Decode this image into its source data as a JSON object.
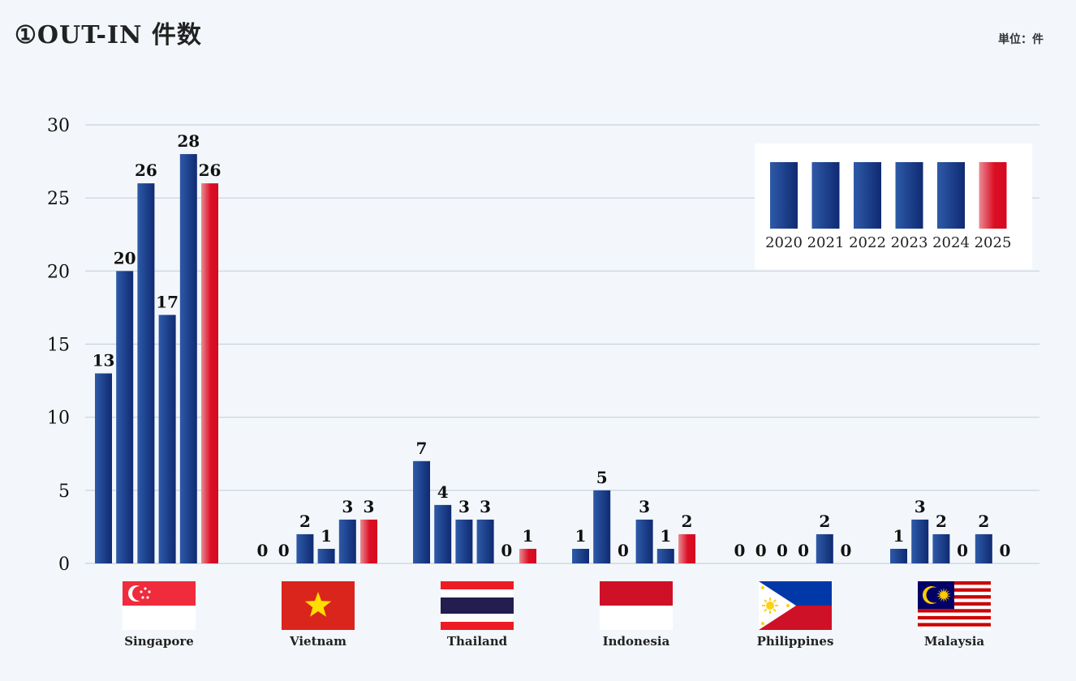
{
  "title": "①OUT-IN 件数",
  "unit": "単位：件",
  "colors": {
    "blue_dark": "#0f2a72",
    "blue_light": "#2e5aa8",
    "red_light": "#e88d96",
    "red": "#dc0f24",
    "grid": "#c9d1da"
  },
  "chart_data": {
    "type": "bar",
    "ylim": [
      0,
      30
    ],
    "yticks": [
      0,
      5,
      10,
      15,
      20,
      25,
      30
    ],
    "grid": true,
    "legend_position": "top-right",
    "categories": [
      "Singapore",
      "Vietnam",
      "Thailand",
      "Indonesia",
      "Philippines",
      "Malaysia"
    ],
    "series": [
      {
        "name": "2020",
        "values": [
          13,
          0,
          7,
          1,
          0,
          1
        ]
      },
      {
        "name": "2021",
        "values": [
          20,
          0,
          4,
          5,
          0,
          3
        ]
      },
      {
        "name": "2022",
        "values": [
          26,
          2,
          3,
          0,
          0,
          2
        ]
      },
      {
        "name": "2023",
        "values": [
          17,
          1,
          3,
          3,
          0,
          0
        ]
      },
      {
        "name": "2024",
        "values": [
          28,
          3,
          0,
          1,
          2,
          2
        ]
      },
      {
        "name": "2025",
        "values": [
          26,
          3,
          1,
          2,
          0,
          0
        ]
      }
    ],
    "flags": [
      "singapore-flag",
      "vietnam-flag",
      "thailand-flag",
      "indonesia-flag",
      "philippines-flag",
      "malaysia-flag"
    ]
  }
}
